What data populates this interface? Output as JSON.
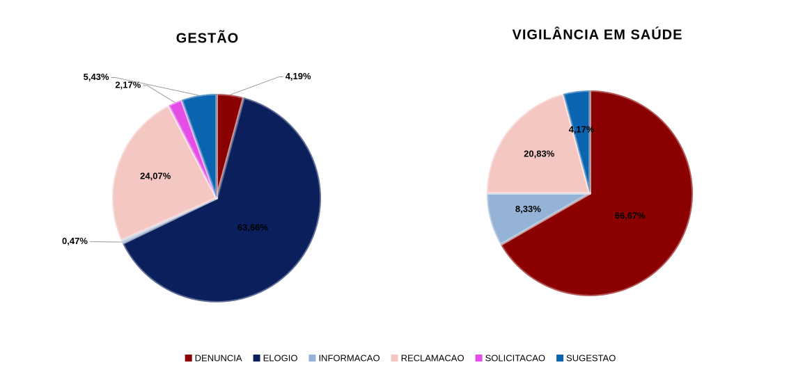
{
  "chart_data": [
    {
      "type": "pie",
      "title": "GESTÃO",
      "categories": [
        "DENUNCIA",
        "ELOGIO",
        "INFORMACAO",
        "RECLAMACAO",
        "SOLICITACAO",
        "SUGESTAO"
      ],
      "values": [
        4.19,
        63.66,
        0.47,
        24.07,
        2.17,
        5.43
      ],
      "value_labels": [
        "4,19%",
        "63,66%",
        "0,47%",
        "24,07%",
        "2,17%",
        "5,43%"
      ],
      "colors": [
        "#8b0000",
        "#0b1f5c",
        "#95b3d7",
        "#f4c7c3",
        "#e34fe6",
        "#0b64b0"
      ]
    },
    {
      "type": "pie",
      "title": "VIGILÂNCIA EM SAÚDE",
      "categories": [
        "DENUNCIA",
        "INFORMACAO",
        "RECLAMACAO",
        "SUGESTAO"
      ],
      "values": [
        66.67,
        8.33,
        20.83,
        4.17
      ],
      "value_labels": [
        "66,67%",
        "8,33%",
        "20,83%",
        "4,17%"
      ],
      "colors": [
        "#8b0000",
        "#95b3d7",
        "#f4c7c3",
        "#0b64b0"
      ]
    }
  ],
  "legend": [
    {
      "name": "DENUNCIA",
      "color": "#8b0000"
    },
    {
      "name": "ELOGIO",
      "color": "#0b1f5c"
    },
    {
      "name": "INFORMACAO",
      "color": "#95b3d7"
    },
    {
      "name": "RECLAMACAO",
      "color": "#f4c7c3"
    },
    {
      "name": "SOLICITACAO",
      "color": "#e34fe6"
    },
    {
      "name": "SUGESTAO",
      "color": "#0b64b0"
    }
  ]
}
